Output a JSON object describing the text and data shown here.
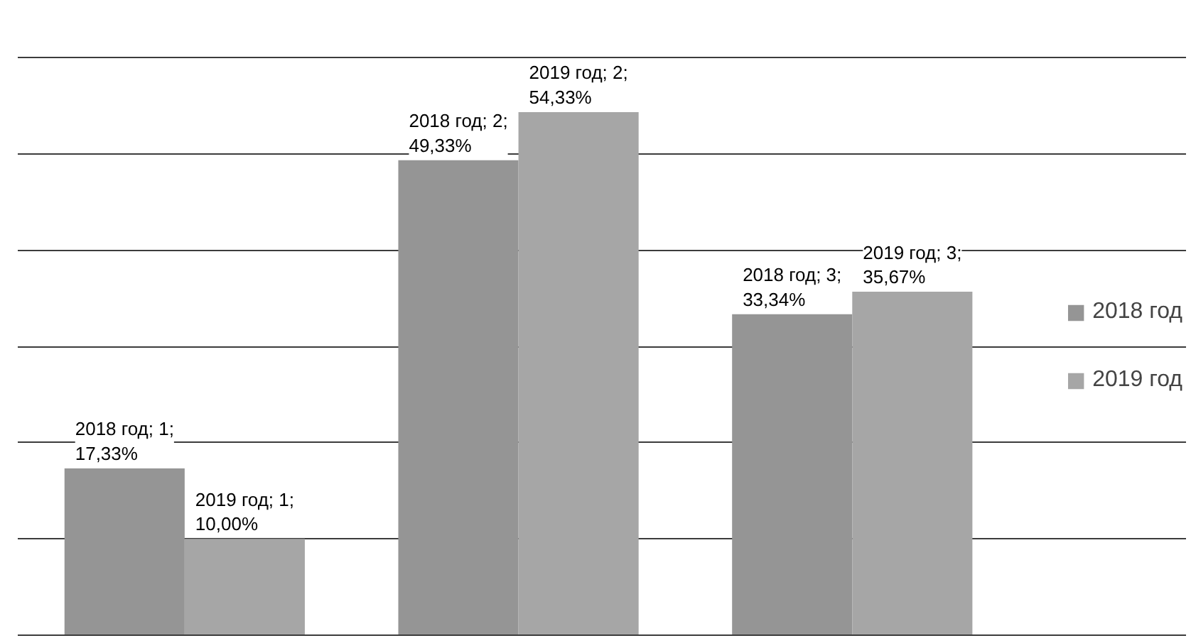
{
  "chart_data": {
    "type": "bar",
    "categories": [
      null,
      null,
      null
    ],
    "series": [
      {
        "name": "2018 год",
        "color": "#959595",
        "values": [
          17.33,
          49.33,
          33.34
        ],
        "value_labels": [
          "2018 год; 1; 17,33%",
          "2018 год; 2; 49,33%",
          "2018 год; 3; 33,34%"
        ]
      },
      {
        "name": "2019 год",
        "color": "#a6a6a6",
        "values": [
          10.0,
          54.33,
          35.67
        ],
        "value_labels": [
          "2019 год; 1; 10,00%",
          "2019 год; 2; 54,33%",
          "2019 год; 3; 35,67%"
        ]
      }
    ],
    "ylim": [
      0,
      60
    ],
    "yticks": [
      {
        "value": 0,
        "label": null
      },
      {
        "value": 10,
        "label": null
      },
      {
        "value": 20,
        "label": null
      },
      {
        "value": 30,
        "label": null
      },
      {
        "value": 40,
        "label": null
      },
      {
        "value": 50,
        "label": null
      },
      {
        "value": 60,
        "label": null
      }
    ],
    "grid": "y",
    "legend": "right",
    "tick_labels": false
  }
}
